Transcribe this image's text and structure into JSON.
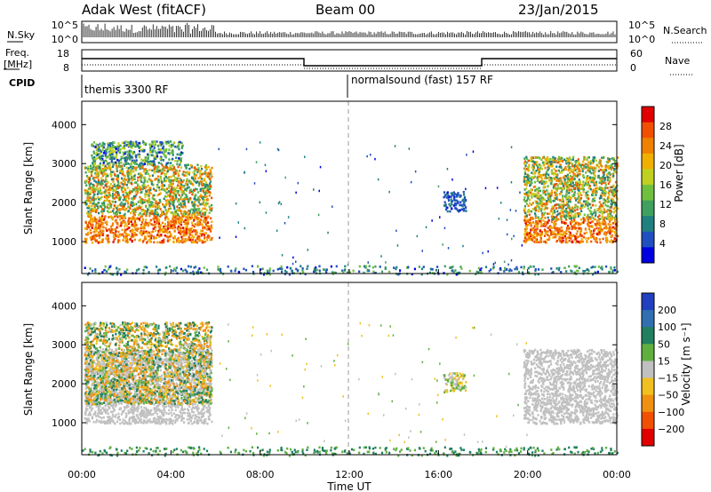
{
  "header": {
    "station": "Adak West (fitACF)",
    "beam": "Beam 00",
    "date": "23/Jan/2015"
  },
  "noise_panel": {
    "left_label": "N.Sky",
    "right_label": "N.Search",
    "left_ticks": [
      "10^5",
      "10^0"
    ],
    "right_ticks": [
      "10^5",
      "10^0"
    ]
  },
  "freq_panel": {
    "left_label_1": "Freq.",
    "left_label_2": "[MHz]",
    "right_label": "Nave",
    "left_ticks": [
      "18",
      "8"
    ],
    "right_ticks": [
      "60",
      "0"
    ]
  },
  "cpid": {
    "label": "CPID",
    "mode_1": "themis 3300 RF",
    "mode_2": "normalsound (fast) 157 RF"
  },
  "x_axis": {
    "label": "Time UT",
    "ticks": [
      "00:00",
      "04:00",
      "08:00",
      "12:00",
      "16:00",
      "20:00",
      "00:00"
    ]
  },
  "power_panel": {
    "y_label": "Slant Range [km]",
    "y_ticks": [
      "1000",
      "2000",
      "3000",
      "4000"
    ],
    "colorbar_label": "Power [dB]",
    "colorbar_ticks": [
      "4",
      "8",
      "12",
      "16",
      "20",
      "24",
      "28"
    ],
    "colors": [
      "#0000e0",
      "#2050c0",
      "#208080",
      "#40a060",
      "#70c040",
      "#c0d020",
      "#f0b000",
      "#f08000",
      "#f05000",
      "#e00000"
    ]
  },
  "velocity_panel": {
    "y_label": "Slant Range [km]",
    "y_ticks": [
      "1000",
      "2000",
      "3000",
      "4000"
    ],
    "colorbar_label": "Velocity [m s⁻¹]",
    "colorbar_ticks": [
      "200",
      "100",
      "50",
      "15",
      "−15",
      "−50",
      "−100",
      "−200"
    ],
    "colors": [
      "#2040c0",
      "#3070b0",
      "#208060",
      "#60b040",
      "#c0c0c0",
      "#f0c020",
      "#f09010",
      "#f05000",
      "#e00000"
    ]
  },
  "chart_data": {
    "type": "heatmap",
    "x_range_hours": [
      0,
      24
    ],
    "y_range_km": [
      180,
      4600
    ],
    "power_features": [
      {
        "name": "band-low",
        "t": [
          0.1,
          5.8
        ],
        "r": [
          1000,
          1700
        ],
        "level_db": [
          20,
          30
        ]
      },
      {
        "name": "band-mid",
        "t": [
          0.1,
          5.8
        ],
        "r": [
          1700,
          3000
        ],
        "level_db": [
          8,
          28
        ]
      },
      {
        "name": "spread-upper",
        "t": [
          0.4,
          4.5
        ],
        "r": [
          3000,
          3600
        ],
        "level_db": [
          4,
          20
        ]
      },
      {
        "name": "patch-17h",
        "t": [
          16.2,
          17.2
        ],
        "r": [
          1800,
          2300
        ],
        "level_db": [
          4,
          10
        ]
      },
      {
        "name": "band-late-low",
        "t": [
          19.8,
          24
        ],
        "r": [
          1000,
          1600
        ],
        "level_db": [
          20,
          30
        ]
      },
      {
        "name": "band-late-mid",
        "t": [
          19.8,
          24
        ],
        "r": [
          1600,
          3200
        ],
        "level_db": [
          8,
          28
        ]
      },
      {
        "name": "near-range",
        "t": [
          0,
          24
        ],
        "r": [
          180,
          400
        ],
        "level_db": [
          4,
          16
        ]
      }
    ],
    "velocity_features": [
      {
        "name": "ground-scatter-early",
        "t": [
          0.1,
          5.8
        ],
        "r": [
          1000,
          2900
        ],
        "vel": [
          -15,
          15
        ]
      },
      {
        "name": "ionospheric-early",
        "t": [
          0.1,
          5.8
        ],
        "r": [
          1500,
          3600
        ],
        "vel": [
          -100,
          100
        ]
      },
      {
        "name": "patch-17h",
        "t": [
          16.2,
          17.2
        ],
        "r": [
          1800,
          2300
        ],
        "vel": [
          -50,
          50
        ]
      },
      {
        "name": "ground-scatter-late",
        "t": [
          19.8,
          24
        ],
        "r": [
          1000,
          2900
        ],
        "vel": [
          -15,
          15
        ]
      },
      {
        "name": "near-range",
        "t": [
          0,
          24
        ],
        "r": [
          180,
          400
        ],
        "vel": [
          15,
          100
        ]
      }
    ]
  }
}
